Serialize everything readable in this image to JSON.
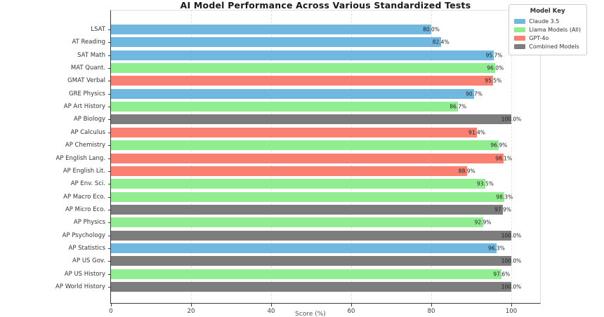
{
  "title": "AI Model Performance Across Various Standardized Tests",
  "x_axis": {
    "label": "Score (%)"
  },
  "legend": {
    "title": "Model Key",
    "entries": [
      {
        "label": "Claude 3.5",
        "model": "claude"
      },
      {
        "label": "Llama Models (All)",
        "model": "llama"
      },
      {
        "label": "GPT-4o",
        "model": "gpt4o"
      },
      {
        "label": "Combined Models",
        "model": "combined"
      }
    ]
  },
  "colors": {
    "claude": "#70b8e0",
    "llama": "#90ee90",
    "gpt4o": "#fa8072",
    "combined": "#7d7d7d",
    "grid": "#e3e3e3",
    "axis": "#3c3c3c"
  },
  "chart_data": {
    "type": "bar",
    "orientation": "horizontal",
    "title": "AI Model Performance Across Various Standardized Tests",
    "xlabel": "Score (%)",
    "xlim": [
      0,
      107.5
    ],
    "xticks": [
      0,
      20,
      40,
      60,
      80,
      100
    ],
    "grid": "vertical-dashed",
    "legend_position": "upper-right",
    "categories": [
      "LSAT",
      "AT Reading",
      "SAT Math",
      "MAT Quant.",
      "GMAT Verbal",
      "GRE Physics",
      "AP Art History",
      "AP Biology",
      "AP Calculus",
      "AP Chemistry",
      "AP English Lang.",
      "AP English Lit.",
      "AP Env. Sci.",
      "AP Macro Eco.",
      "AP Micro Eco.",
      "AP Physics",
      "AP Psychology",
      "AP Statistics",
      "AP US Gov.",
      "AP US History",
      "AP World History"
    ],
    "values": [
      80.0,
      82.4,
      95.7,
      96.0,
      95.5,
      90.7,
      86.7,
      100.0,
      91.4,
      96.9,
      98.1,
      88.9,
      93.5,
      98.3,
      97.9,
      92.9,
      100.0,
      96.3,
      100.0,
      97.6,
      100.0
    ],
    "value_labels": [
      "80.0%",
      "82.4%",
      "95.7%",
      "96.0%",
      "95.5%",
      "90.7%",
      "86.7%",
      "100.0%",
      "91.4%",
      "96.9%",
      "98.1%",
      "88.9%",
      "93.5%",
      "98.3%",
      "97.9%",
      "92.9%",
      "100.0%",
      "96.3%",
      "100.0%",
      "97.6%",
      "100.0%"
    ],
    "bar_models": [
      "claude",
      "claude",
      "claude",
      "llama",
      "gpt4o",
      "claude",
      "llama",
      "combined",
      "gpt4o",
      "llama",
      "gpt4o",
      "gpt4o",
      "llama",
      "llama",
      "combined",
      "llama",
      "combined",
      "claude",
      "combined",
      "llama",
      "combined"
    ]
  }
}
